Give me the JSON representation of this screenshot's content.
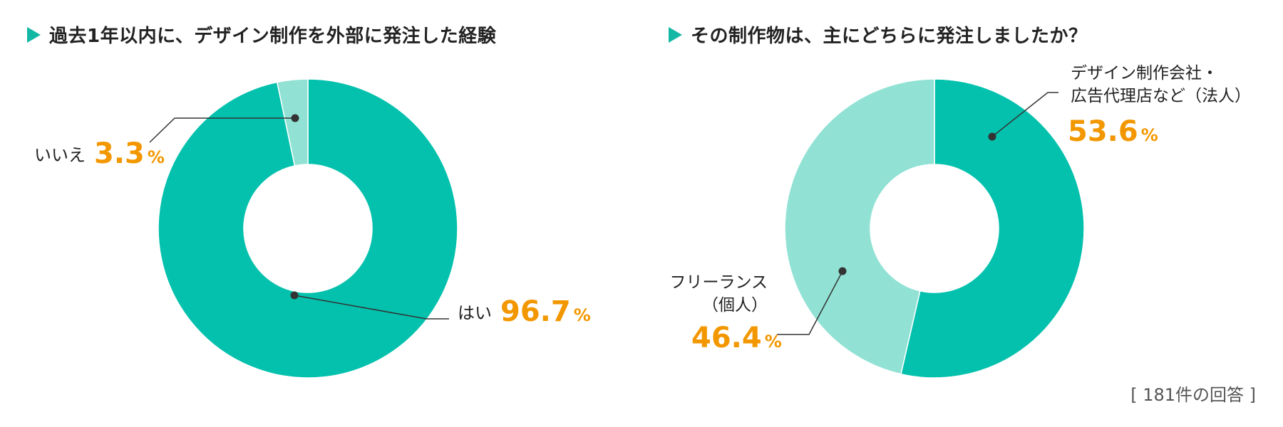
{
  "colors": {
    "primary": "#03c1ad",
    "secondary": "#91e2d4",
    "accent": "#f39700",
    "leader": "#333333",
    "title_marker": "#12b8a4"
  },
  "footnote": "[ 181件の回答 ]",
  "chart_data": [
    {
      "type": "pie",
      "variant": "donut",
      "title": "過去1年以内に、デザイン制作を外部に発注した経験",
      "unit": "%",
      "slices": [
        {
          "label_lines": [
            "はい"
          ],
          "value": 96.7,
          "value_text": "96.7",
          "color": "#03c1ad"
        },
        {
          "label_lines": [
            "いいえ"
          ],
          "value": 3.3,
          "value_text": "3.3",
          "color": "#91e2d4"
        }
      ]
    },
    {
      "type": "pie",
      "variant": "donut",
      "title": "その制作物は、主にどちらに発注しましたか？",
      "unit": "%",
      "slices": [
        {
          "label_lines": [
            "デザイン制作会社・",
            "広告代理店など（法人）"
          ],
          "value": 53.6,
          "value_text": "53.6",
          "color": "#03c1ad"
        },
        {
          "label_lines": [
            "フリーランス",
            "（個人）"
          ],
          "value": 46.4,
          "value_text": "46.4",
          "color": "#91e2d4"
        }
      ]
    }
  ]
}
